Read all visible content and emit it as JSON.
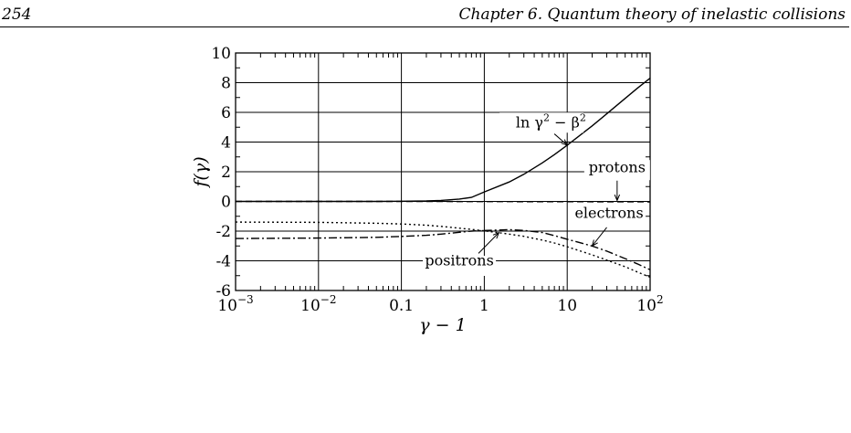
{
  "header": {
    "page_number": "254",
    "running_head": "Chapter 6.  Quantum theory of inelastic collisions"
  },
  "chart_data": {
    "type": "line",
    "xlabel": "γ − 1",
    "ylabel": "f(γ)",
    "xscale": "log",
    "xlim": [
      0.001,
      100
    ],
    "ylim": [
      -6,
      10
    ],
    "grid": true,
    "x_ticks": [
      {
        "value": 0.001,
        "base": "10",
        "exp": "−3"
      },
      {
        "value": 0.01,
        "base": "10",
        "exp": "−2"
      },
      {
        "value": 0.1,
        "base": "0.1",
        "exp": ""
      },
      {
        "value": 1,
        "base": "1",
        "exp": ""
      },
      {
        "value": 10,
        "base": "10",
        "exp": ""
      },
      {
        "value": 100,
        "base": "10",
        "exp": "2"
      }
    ],
    "y_ticks": [
      {
        "value": -6,
        "label": "-6"
      },
      {
        "value": -4,
        "label": "-4"
      },
      {
        "value": -2,
        "label": "-2"
      },
      {
        "value": 0,
        "label": "0"
      },
      {
        "value": 2,
        "label": "2"
      },
      {
        "value": 4,
        "label": "4"
      },
      {
        "value": 6,
        "label": "6"
      },
      {
        "value": 8,
        "label": "8"
      },
      {
        "value": 10,
        "label": "10"
      }
    ],
    "series": [
      {
        "name": "ln γ² − β²",
        "style": "solid",
        "x": [
          0.001,
          0.01,
          0.05,
          0.1,
          0.2,
          0.3,
          0.5,
          0.7,
          1,
          2,
          3,
          5,
          7,
          10,
          20,
          30,
          50,
          70,
          100
        ],
        "y": [
          0.0,
          0.0,
          0.0,
          0.01,
          0.03,
          0.07,
          0.16,
          0.27,
          0.64,
          1.31,
          1.83,
          2.6,
          3.15,
          3.79,
          5.09,
          5.9,
          6.94,
          7.62,
          8.3
        ]
      },
      {
        "name": "protons",
        "style": "dashed",
        "x": [
          0.001,
          0.01,
          0.1,
          1,
          10,
          100
        ],
        "y": [
          0.0,
          0.0,
          0.0,
          -0.01,
          -0.02,
          -0.03
        ]
      },
      {
        "name": "electrons",
        "style": "dash-dot",
        "x": [
          0.001,
          0.01,
          0.05,
          0.1,
          0.2,
          0.3,
          0.5,
          0.7,
          1,
          2,
          3,
          5,
          7,
          10,
          20,
          30,
          50,
          70,
          100
        ],
        "y": [
          -2.5,
          -2.47,
          -2.42,
          -2.36,
          -2.28,
          -2.2,
          -2.08,
          -2.0,
          -1.96,
          -1.9,
          -1.95,
          -2.1,
          -2.3,
          -2.55,
          -3.0,
          -3.35,
          -3.85,
          -4.2,
          -4.6
        ]
      },
      {
        "name": "positrons",
        "style": "dotted",
        "x": [
          0.001,
          0.01,
          0.05,
          0.1,
          0.2,
          0.3,
          0.5,
          0.7,
          1,
          2,
          3,
          5,
          7,
          10,
          20,
          30,
          50,
          70,
          100
        ],
        "y": [
          -1.39,
          -1.41,
          -1.47,
          -1.52,
          -1.6,
          -1.68,
          -1.8,
          -1.88,
          -1.98,
          -2.2,
          -2.35,
          -2.6,
          -2.8,
          -3.05,
          -3.6,
          -3.95,
          -4.4,
          -4.75,
          -5.1
        ]
      }
    ],
    "annotations": {
      "lngamma": {
        "label_base": "ln γ",
        "label_mid": " − β",
        "sup": "2",
        "x": 10,
        "y": 3.79
      },
      "protons": {
        "label": "protons",
        "x": 40,
        "y": 0.0
      },
      "electrons": {
        "label": "electrons",
        "x": 20,
        "y": -3.0
      },
      "positrons": {
        "label": "positrons",
        "x": 1.5,
        "y": -2.1
      }
    }
  }
}
